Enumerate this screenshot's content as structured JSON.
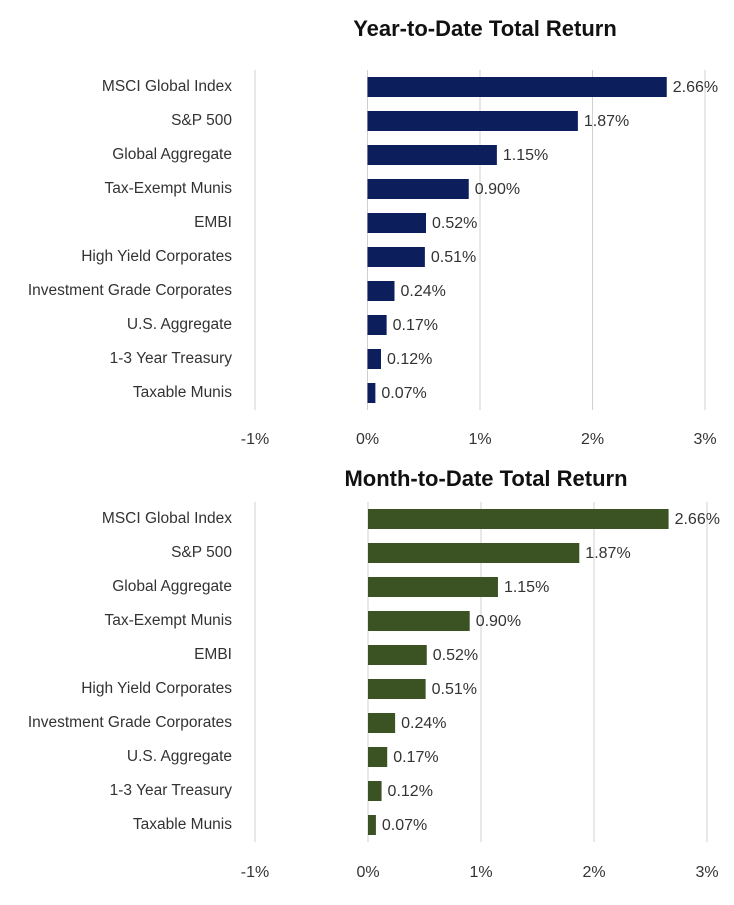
{
  "chart_data": [
    {
      "type": "bar",
      "orientation": "horizontal",
      "title": "Year-to-Date Total Return",
      "categories": [
        "MSCI Global Index",
        "S&P 500",
        "Global Aggregate",
        "Tax-Exempt Munis",
        "EMBI",
        "High Yield Corporates",
        "Investment Grade Corporates",
        "U.S. Aggregate",
        "1-3 Year Treasury",
        "Taxable Munis"
      ],
      "values": [
        2.66,
        1.87,
        1.15,
        0.9,
        0.52,
        0.51,
        0.24,
        0.17,
        0.12,
        0.07
      ],
      "value_labels": [
        "2.66%",
        "1.87%",
        "1.15%",
        "0.90%",
        "0.52%",
        "0.51%",
        "0.24%",
        "0.17%",
        "0.12%",
        "0.07%"
      ],
      "color": "#0c1f5c",
      "xlim": [
        -1,
        3
      ],
      "xticks": [
        {
          "value": -1,
          "label": "-1%"
        },
        {
          "value": 0,
          "label": "0%"
        },
        {
          "value": 1,
          "label": "1%"
        },
        {
          "value": 2,
          "label": "2%"
        },
        {
          "value": 3,
          "label": "3%"
        }
      ],
      "grid": true
    },
    {
      "type": "bar",
      "orientation": "horizontal",
      "title": "Month-to-Date Total Return",
      "categories": [
        "MSCI Global Index",
        "S&P 500",
        "Global Aggregate",
        "Tax-Exempt Munis",
        "EMBI",
        "High Yield Corporates",
        "Investment Grade Corporates",
        "U.S. Aggregate",
        "1-3 Year Treasury",
        "Taxable Munis"
      ],
      "values": [
        2.66,
        1.87,
        1.15,
        0.9,
        0.52,
        0.51,
        0.24,
        0.17,
        0.12,
        0.07
      ],
      "value_labels": [
        "2.66%",
        "1.87%",
        "1.15%",
        "0.90%",
        "0.52%",
        "0.51%",
        "0.24%",
        "0.17%",
        "0.12%",
        "0.07%"
      ],
      "color": "#3b5323",
      "xlim": [
        -1,
        3
      ],
      "xticks": [
        {
          "value": -1,
          "label": "-1%"
        },
        {
          "value": 0,
          "label": "0%"
        },
        {
          "value": 1,
          "label": "1%"
        },
        {
          "value": 2,
          "label": "2%"
        },
        {
          "value": 3,
          "label": "3%"
        }
      ],
      "grid": true
    }
  ]
}
